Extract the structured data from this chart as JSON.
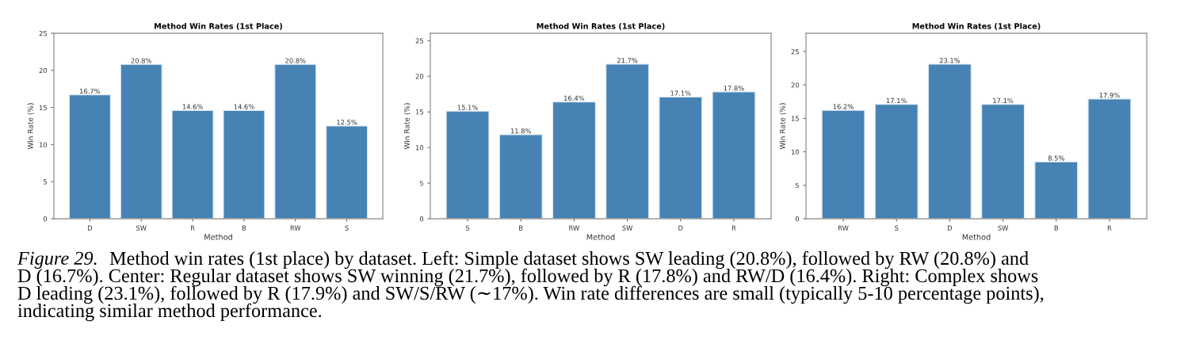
{
  "chart_data": [
    {
      "type": "bar",
      "title": "Method Win Rates (1st Place)",
      "xlabel": "Method",
      "ylabel": "Win Rate (%)",
      "categories": [
        "D",
        "SW",
        "R",
        "B",
        "RW",
        "S"
      ],
      "values": [
        16.7,
        20.8,
        14.6,
        14.6,
        20.8,
        12.5
      ],
      "value_labels": [
        "16.7%",
        "20.8%",
        "14.6%",
        "14.6%",
        "20.8%",
        "12.5%"
      ],
      "color": "#4682b4",
      "ylim": [
        0,
        25
      ],
      "yticks": [
        0,
        5,
        10,
        15,
        20,
        25
      ],
      "grid": false,
      "legend": false,
      "annotations": [
        "Figure 29.",
        "Method win rates (1st place) by dataset. Left: Simple dataset shows SW leading (20.8%), followed by RW (20.8%) and",
        "D (16.7%). Center: Regular dataset shows SW winning (21.7%), followed by R (17.8%) and RW/D (16.4%). Right: Complex shows",
        "D leading (23.1%), followed by R (17.9%) and SW/S/RW (∼17%). Win rate differences are small (typically 5-10 percentage points),",
        "indicating similar method performance."
      ]
    },
    {
      "type": "bar",
      "title": "Method Win Rates (1st Place)",
      "xlabel": "Method",
      "ylabel": "Win Rate (%)",
      "categories": [
        "S",
        "B",
        "RW",
        "SW",
        "D",
        "R"
      ],
      "values": [
        15.1,
        11.8,
        16.4,
        21.7,
        17.1,
        17.8
      ],
      "value_labels": [
        "15.1%",
        "11.8%",
        "16.4%",
        "21.7%",
        "17.1%",
        "17.8%"
      ],
      "color": "#4682b4",
      "ylim": [
        0,
        26.04
      ],
      "yticks": [
        0,
        5,
        10,
        15,
        20,
        25
      ],
      "grid": false,
      "legend": false
    },
    {
      "type": "bar",
      "title": "Method Win Rates (1st Place)",
      "xlabel": "Method",
      "ylabel": "Win Rate (%)",
      "categories": [
        "RW",
        "S",
        "D",
        "SW",
        "B",
        "R"
      ],
      "values": [
        16.2,
        17.1,
        23.1,
        17.1,
        8.5,
        17.9
      ],
      "value_labels": [
        "16.2%",
        "17.1%",
        "23.1%",
        "17.1%",
        "8.5%",
        "17.9%"
      ],
      "color": "#4682b4",
      "ylim": [
        0,
        27.72
      ],
      "yticks": [
        0,
        5,
        10,
        15,
        20,
        25
      ],
      "grid": false,
      "legend": false
    }
  ]
}
